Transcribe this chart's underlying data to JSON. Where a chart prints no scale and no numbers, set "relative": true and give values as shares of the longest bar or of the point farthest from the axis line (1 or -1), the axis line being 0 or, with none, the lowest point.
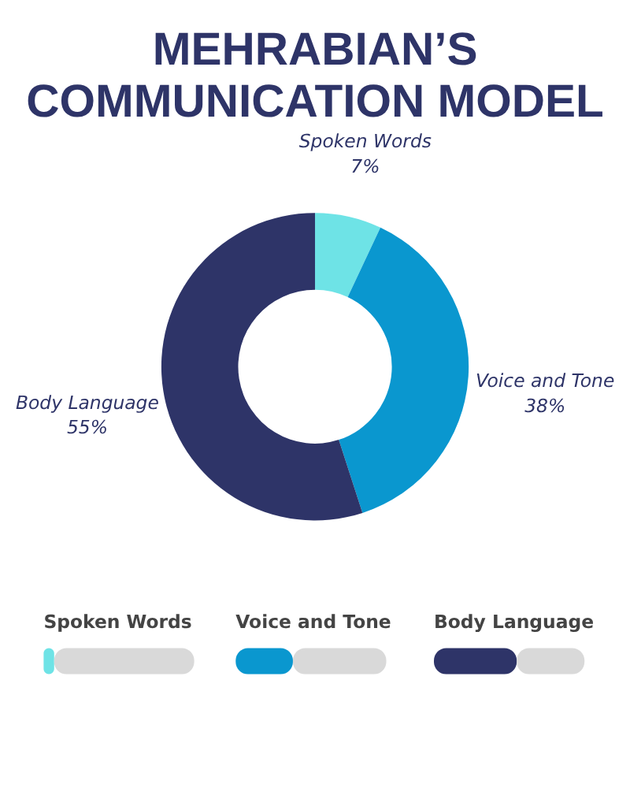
{
  "chart_data": [
    {
      "type": "donut",
      "title": "MEHRABIAN’S COMMUNICATION MODEL",
      "categories": [
        "Spoken Words",
        "Voice and Tone",
        "Body Language"
      ],
      "values": [
        7,
        38,
        55
      ],
      "value_labels": [
        "7%",
        "38%",
        "55%"
      ],
      "colors": [
        "#6ee3e6",
        "#0a97cf",
        "#2e3468"
      ]
    },
    {
      "type": "bar",
      "orientation": "horizontal",
      "stacked": true,
      "relative": true,
      "categories": [
        "Spoken Words"
      ],
      "series": [
        {
          "color": "#6ee3e6",
          "values": [
            0.07
          ]
        },
        {
          "color": "#d9d9d9",
          "values": [
            0.93
          ]
        }
      ]
    },
    {
      "type": "bar",
      "orientation": "horizontal",
      "stacked": true,
      "relative": true,
      "categories": [
        "Voice and Tone"
      ],
      "series": [
        {
          "color": "#0a97cf",
          "values": [
            0.38
          ]
        },
        {
          "color": "#d9d9d9",
          "values": [
            0.62
          ]
        }
      ]
    },
    {
      "type": "bar",
      "orientation": "horizontal",
      "stacked": true,
      "relative": true,
      "categories": [
        "Body Language"
      ],
      "series": [
        {
          "color": "#2e3468",
          "values": [
            0.55
          ]
        },
        {
          "color": "#d9d9d9",
          "values": [
            0.45
          ]
        }
      ]
    }
  ]
}
